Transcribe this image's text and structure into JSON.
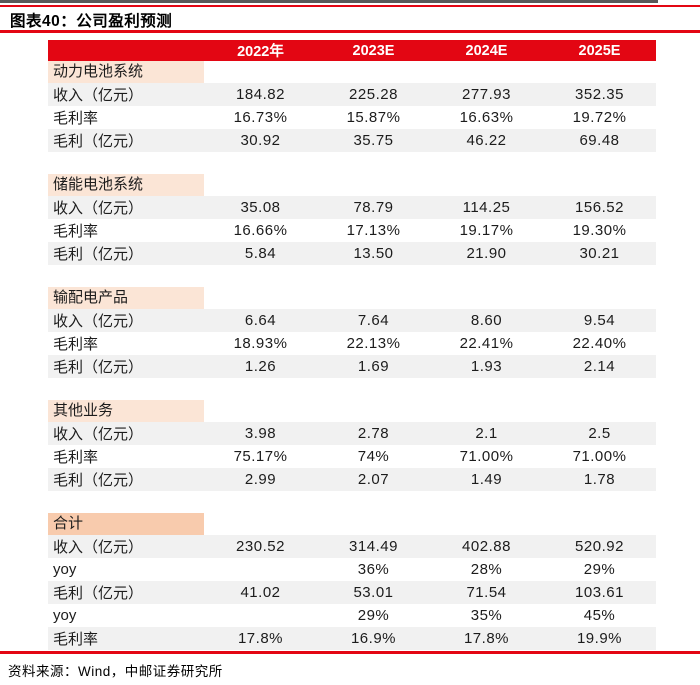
{
  "header": {
    "title": "图表40：公司盈利预测"
  },
  "footer": {
    "source": "资料来源：Wind，中邮证券研究所"
  },
  "colors": {
    "accent_red": "#E30613",
    "section_label_bg": "#FBE5D6",
    "total_label_bg": "#F8CBAD",
    "row_stripe_bg": "#F1F1F1",
    "top_border": "#595959"
  },
  "table": {
    "columns": [
      "2022年",
      "2023E",
      "2024E",
      "2025E"
    ],
    "sections": [
      {
        "name": "动力电池系统",
        "emphasis": "normal",
        "rows": [
          {
            "label": "收入（亿元）",
            "values": [
              "184.82",
              "225.28",
              "277.93",
              "352.35"
            ],
            "striped": true
          },
          {
            "label": "毛利率",
            "values": [
              "16.73%",
              "15.87%",
              "16.63%",
              "19.72%"
            ],
            "striped": false
          },
          {
            "label": "毛利（亿元）",
            "values": [
              "30.92",
              "35.75",
              "46.22",
              "69.48"
            ],
            "striped": true
          }
        ]
      },
      {
        "name": "储能电池系统",
        "emphasis": "normal",
        "rows": [
          {
            "label": "收入（亿元）",
            "values": [
              "35.08",
              "78.79",
              "114.25",
              "156.52"
            ],
            "striped": true
          },
          {
            "label": "毛利率",
            "values": [
              "16.66%",
              "17.13%",
              "19.17%",
              "19.30%"
            ],
            "striped": false
          },
          {
            "label": "毛利（亿元）",
            "values": [
              "5.84",
              "13.50",
              "21.90",
              "30.21"
            ],
            "striped": true
          }
        ]
      },
      {
        "name": "输配电产品",
        "emphasis": "normal",
        "rows": [
          {
            "label": "收入（亿元）",
            "values": [
              "6.64",
              "7.64",
              "8.60",
              "9.54"
            ],
            "striped": true
          },
          {
            "label": "毛利率",
            "values": [
              "18.93%",
              "22.13%",
              "22.41%",
              "22.40%"
            ],
            "striped": false
          },
          {
            "label": "毛利（亿元）",
            "values": [
              "1.26",
              "1.69",
              "1.93",
              "2.14"
            ],
            "striped": true
          }
        ]
      },
      {
        "name": "其他业务",
        "emphasis": "normal",
        "rows": [
          {
            "label": "收入（亿元）",
            "values": [
              "3.98",
              "2.78",
              "2.1",
              "2.5"
            ],
            "striped": true
          },
          {
            "label": "毛利率",
            "values": [
              "75.17%",
              "74%",
              "71.00%",
              "71.00%"
            ],
            "striped": false
          },
          {
            "label": "毛利（亿元）",
            "values": [
              "2.99",
              "2.07",
              "1.49",
              "1.78"
            ],
            "striped": true
          }
        ]
      },
      {
        "name": "合计",
        "emphasis": "strong",
        "rows": [
          {
            "label": "收入（亿元）",
            "values": [
              "230.52",
              "314.49",
              "402.88",
              "520.92"
            ],
            "striped": true
          },
          {
            "label": "yoy",
            "values": [
              "",
              "36%",
              "28%",
              "29%"
            ],
            "striped": false
          },
          {
            "label": "毛利（亿元）",
            "values": [
              "41.02",
              "53.01",
              "71.54",
              "103.61"
            ],
            "striped": true
          },
          {
            "label": "yoy",
            "values": [
              "",
              "29%",
              "35%",
              "45%"
            ],
            "striped": false
          },
          {
            "label": "毛利率",
            "values": [
              "17.8%",
              "16.9%",
              "17.8%",
              "19.9%"
            ],
            "striped": true
          }
        ]
      }
    ]
  }
}
